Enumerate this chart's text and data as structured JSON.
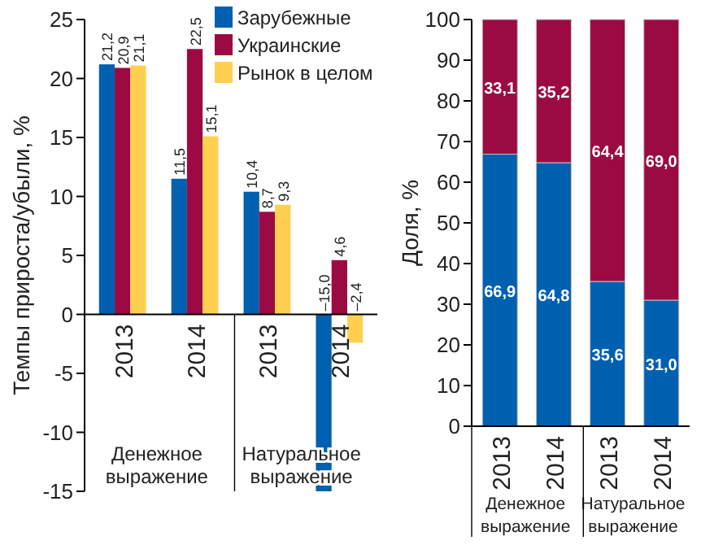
{
  "chart_data": [
    {
      "type": "bar",
      "ylabel": "Темпы прироста/убыли, %",
      "categories": [
        "2013",
        "2014",
        "2013",
        "2014"
      ],
      "ylim": [
        -15,
        25
      ],
      "yticks": [
        {
          "value": -15,
          "label": "-15"
        },
        {
          "value": -10,
          "label": "-10"
        },
        {
          "value": -5,
          "label": "-5"
        },
        0,
        5,
        10,
        15,
        20,
        25
      ],
      "legend": "top right",
      "annotations": [
        "Денежное выражение",
        "Натуральное выражение"
      ],
      "series": [
        {
          "name": "Зарубежные",
          "color": "#0060b0",
          "values": [
            21.2,
            11.5,
            10.4,
            -15.0
          ],
          "value_labels": [
            "21,2",
            "11,5",
            "10,4",
            "–15,0"
          ]
        },
        {
          "name": "Украинские",
          "color": "#9c0a44",
          "values": [
            20.9,
            22.5,
            8.7,
            4.6
          ],
          "value_labels": [
            "20,9",
            "22,5",
            "8,7",
            "4,6"
          ]
        },
        {
          "name": "Рынок в целом",
          "color": "#ffd050",
          "values": [
            21.1,
            15.1,
            9.3,
            -2.4
          ],
          "value_labels": [
            "21,1",
            "15,1",
            "9,3",
            "–2,4"
          ]
        }
      ]
    },
    {
      "type": "bar",
      "stacked": true,
      "ylabel": "Доля, %",
      "categories": [
        "2013",
        "2014",
        "2013",
        "2014"
      ],
      "ylim": [
        0,
        100
      ],
      "yticks": [
        0,
        10,
        20,
        30,
        40,
        50,
        60,
        70,
        80,
        90,
        100
      ],
      "annotations": [
        "Денежное выражение",
        "Натуральное выражение"
      ],
      "series": [
        {
          "color": "#0060b0",
          "values": [
            66.9,
            64.8,
            35.6,
            31.0
          ],
          "value_labels": [
            "66,9",
            "64,8",
            "35,6",
            "31,0"
          ]
        },
        {
          "color": "#9c0a44",
          "values": [
            33.1,
            35.2,
            64.4,
            69.0
          ],
          "value_labels": [
            "33,1",
            "35,2",
            "64,4",
            "69,0"
          ]
        }
      ]
    }
  ]
}
